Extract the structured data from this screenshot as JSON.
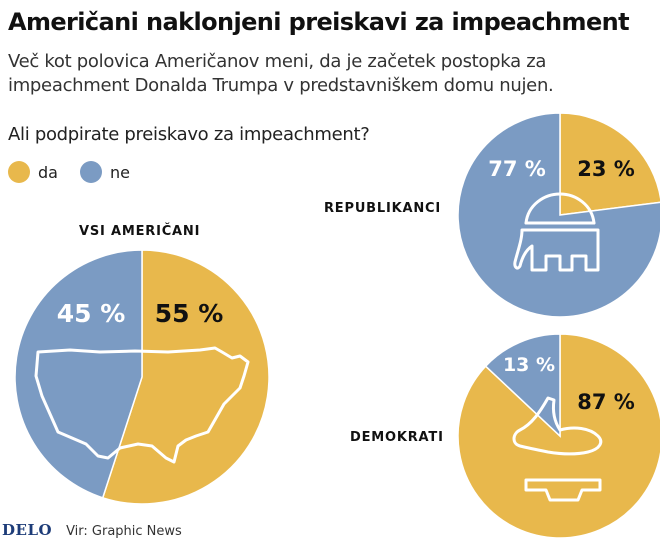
{
  "title": "Američani naklonjeni preiskavi za impeachment",
  "subtitle": "Več kot polovica Američanov meni, da je začetek postopka za impeachment Donalda Trumpa v predstavniškem domu nujen.",
  "question": "Ali podpirate preiskavo za impeachment?",
  "legend": [
    {
      "label": "da",
      "color": "#e8b84c"
    },
    {
      "label": "ne",
      "color": "#7b9bc3"
    }
  ],
  "colors": {
    "da": "#e8b84c",
    "ne": "#7b9bc3",
    "outline": "#ffffff"
  },
  "chart_data": [
    {
      "type": "pie",
      "title": "VSI AMERIČANI",
      "slices": [
        {
          "label": "da",
          "value": 55,
          "text": "55 %"
        },
        {
          "label": "ne",
          "value": 45,
          "text": "45 %"
        }
      ],
      "icon": "usa-map-icon"
    },
    {
      "type": "pie",
      "title": "REPUBLIKANCI",
      "slices": [
        {
          "label": "da",
          "value": 23,
          "text": "23 %"
        },
        {
          "label": "ne",
          "value": 77,
          "text": "77 %"
        }
      ],
      "icon": "elephant-icon"
    },
    {
      "type": "pie",
      "title": "DEMOKRATI",
      "slices": [
        {
          "label": "da",
          "value": 87,
          "text": "87 %"
        },
        {
          "label": "ne",
          "value": 13,
          "text": "13 %"
        }
      ],
      "icon": "donkey-icon"
    }
  ],
  "footer": {
    "brand": "DELO",
    "source": "Vir: Graphic News"
  }
}
